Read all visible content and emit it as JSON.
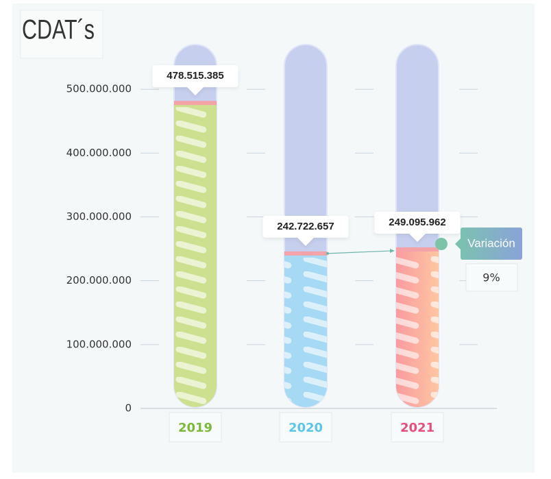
{
  "chart_data": {
    "type": "bar",
    "title": "CDAT´s",
    "categories": [
      "2019",
      "2020",
      "2021"
    ],
    "values": [
      478515385,
      242722657,
      249095962
    ],
    "value_labels": [
      "478.515.385",
      "242.722.657",
      "249.095.962"
    ],
    "colors": [
      "#cde08f",
      "#a6d9f3",
      "#f9a3a0"
    ],
    "label_colors": [
      "#7cb83a",
      "#5cc6ea",
      "#e64f7b"
    ],
    "ylim": [
      0,
      570000000
    ],
    "yticks": [
      0,
      {
        "value": 100000000,
        "label": "100.000.000"
      },
      {
        "value": 200000000,
        "label": "200.000.000"
      },
      {
        "value": 300000000,
        "label": "300.000.000"
      },
      {
        "value": 400000000,
        "label": "400.000.000"
      },
      {
        "value": 500000000,
        "label": "500.000.000"
      }
    ],
    "grid": true,
    "annotations": {
      "variation_label": "Variación",
      "variation_value": "9%"
    }
  }
}
